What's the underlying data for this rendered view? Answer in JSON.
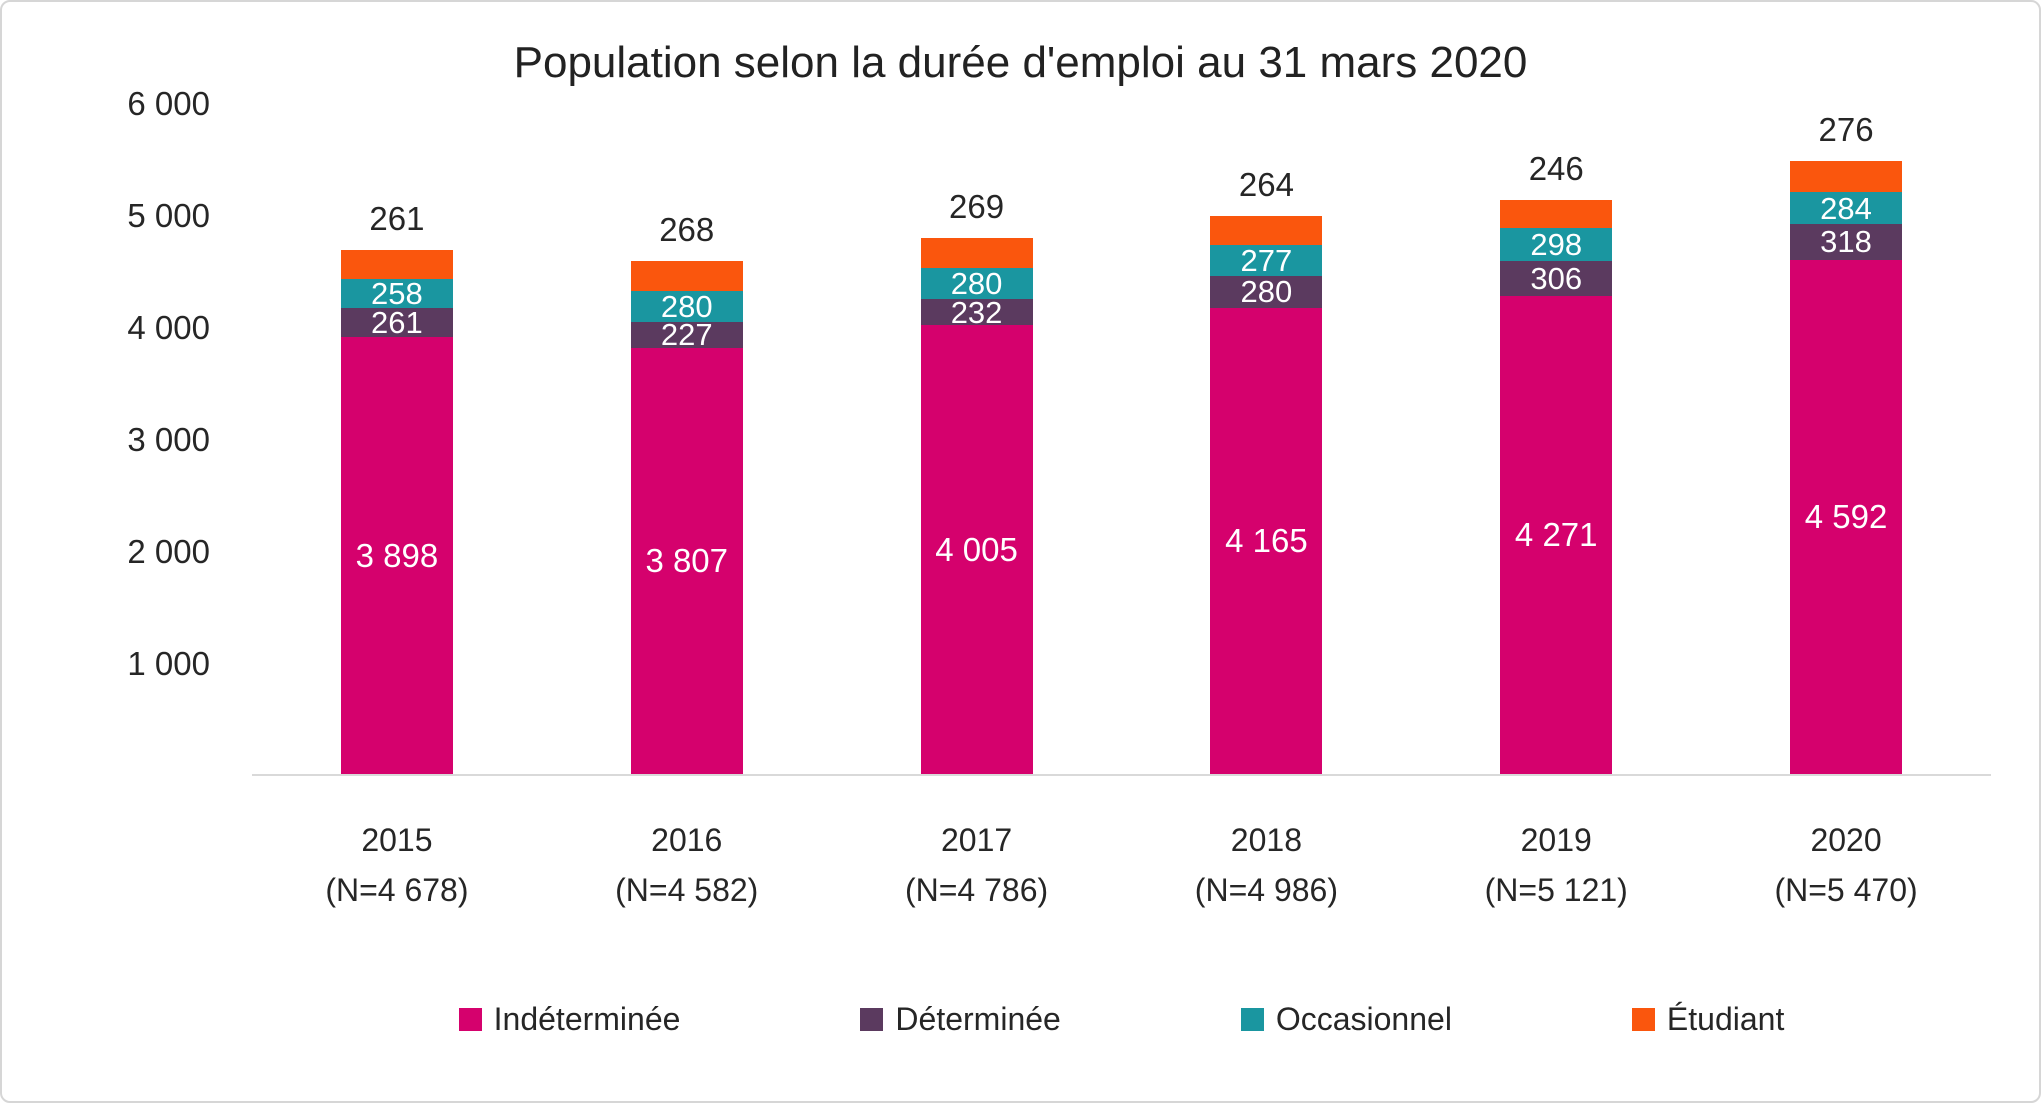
{
  "chart_data": {
    "type": "bar",
    "subtype": "stacked",
    "title": "Population selon la durée d'emploi au 31 mars 2020",
    "categories": [
      "2015",
      "2016",
      "2017",
      "2018",
      "2019",
      "2020"
    ],
    "category_sublabels": [
      "(N=4 678)",
      "(N=4 582)",
      "(N=4 786)",
      "(N=4 986)",
      "(N=5 121)",
      "(N=5 470)"
    ],
    "totals": [
      4678,
      4582,
      4786,
      4986,
      5121,
      5470
    ],
    "series": [
      {
        "key": "indeterminee",
        "name": "Indéterminée",
        "color": "#D5016D",
        "values": [
          3898,
          3807,
          4005,
          4165,
          4271,
          4592
        ],
        "labels": [
          "3 898",
          "3 807",
          "4 005",
          "4 165",
          "4 271",
          "4 592"
        ]
      },
      {
        "key": "determinee",
        "name": "Déterminée",
        "color": "#5B3A5F",
        "values": [
          261,
          227,
          232,
          280,
          306,
          318
        ],
        "labels": [
          "261",
          "227",
          "232",
          "280",
          "306",
          "318"
        ]
      },
      {
        "key": "occasionnel",
        "name": "Occasionnel",
        "color": "#1A96A0",
        "values": [
          258,
          280,
          280,
          277,
          298,
          284
        ],
        "labels": [
          "258",
          "280",
          "280",
          "277",
          "298",
          "284"
        ]
      },
      {
        "key": "etudiant",
        "name": "Étudiant",
        "color": "#FA560D",
        "values": [
          261,
          268,
          269,
          264,
          246,
          276
        ],
        "labels": [
          "261",
          "268",
          "269",
          "264",
          "246",
          "276"
        ]
      }
    ],
    "y_axis": {
      "max": 6000,
      "ticks": [
        {
          "value": 6000,
          "label": "6 000"
        },
        {
          "value": 5000,
          "label": "5 000"
        },
        {
          "value": 4000,
          "label": "4 000"
        },
        {
          "value": 3000,
          "label": "3 000"
        },
        {
          "value": 2000,
          "label": "2 000"
        },
        {
          "value": 1000,
          "label": "1 000"
        }
      ]
    },
    "ylim": [
      0,
      6000
    ],
    "grid": false,
    "legend": {
      "position": "bottom",
      "entries": [
        "Indéterminée",
        "Déterminée",
        "Occasionnel",
        "Étudiant"
      ]
    }
  }
}
